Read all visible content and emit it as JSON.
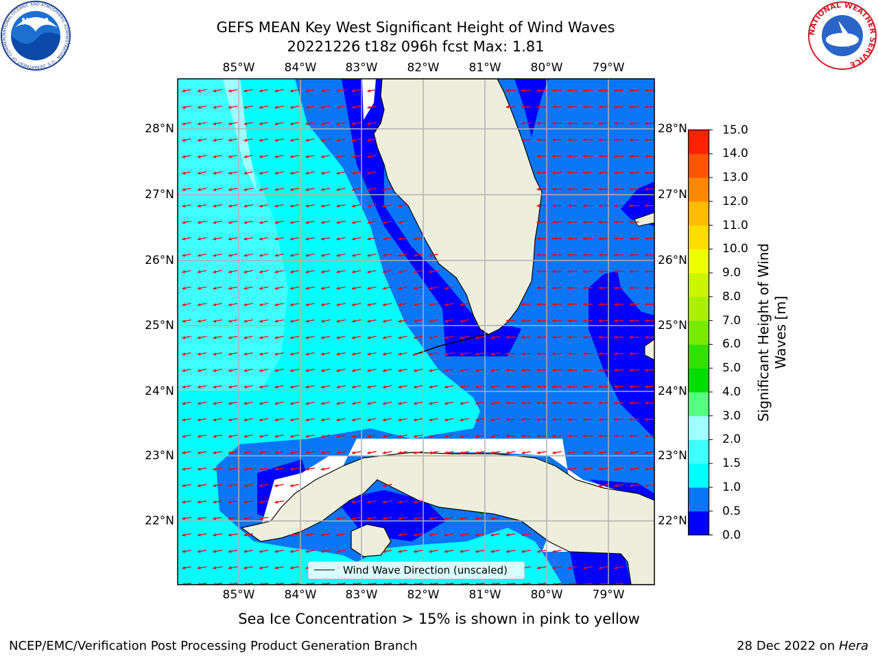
{
  "title": {
    "line1": "GEFS MEAN Key West Significant Height of Wind Waves",
    "line2": "20221226 t18z 096h fcst   Max: 1.81"
  },
  "map": {
    "lon_labels": [
      "85°W",
      "84°W",
      "83°W",
      "82°W",
      "81°W",
      "80°W",
      "79°W"
    ],
    "lat_labels": [
      "28°N",
      "27°N",
      "26°N",
      "25°N",
      "24°N",
      "23°N",
      "22°N"
    ],
    "colors": {
      "land": "#eeeedc",
      "coast": "#000000",
      "grid": "#b0b0b0",
      "arrow": "#ff0000",
      "band_0_0_5": "#0000ff",
      "band_0_5_1_0": "#0a76f7",
      "band_1_0_1_5": "#00ffff",
      "band_1_5_2_0": "#40ffff",
      "band_2_0_3_0": "#a0ffff"
    },
    "legend_label": "Wind Wave Direction (unscaled)"
  },
  "colorbar": {
    "title_line1": "Significant Height of Wind",
    "title_line2": "Waves [m]",
    "labels": [
      "0.0",
      "0.5",
      "1.0",
      "1.5",
      "2.0",
      "3.0",
      "4.0",
      "5.0",
      "6.0",
      "7.0",
      "8.0",
      "9.0",
      "10.0",
      "11.0",
      "12.0",
      "13.0",
      "14.0",
      "15.0"
    ],
    "colors": [
      "#0000ff",
      "#0a76f7",
      "#00ffff",
      "#40ffff",
      "#a0ffff",
      "#55ff7f",
      "#00dd00",
      "#33e000",
      "#77ea00",
      "#aaf000",
      "#ccf500",
      "#eeff00",
      "#ffdd00",
      "#ffbb00",
      "#ff8800",
      "#ff5500",
      "#ff2200"
    ]
  },
  "caption": "Sea Ice Concentration > 15% is shown in pink to yellow",
  "footer": {
    "left": "NCEP/EMC/Verification Post Processing Product Generation Branch",
    "right_date": "28 Dec 2022 on ",
    "right_host": "Hera"
  },
  "logos": {
    "noaa_text": "NOAA",
    "noaa_ring": "NATIONAL OCEANIC AND ATMOSPHERIC ADMINISTRATION · U.S. DEPARTMENT OF COMMERCE",
    "nws_ring": "NATIONAL WEATHER SERVICE"
  }
}
